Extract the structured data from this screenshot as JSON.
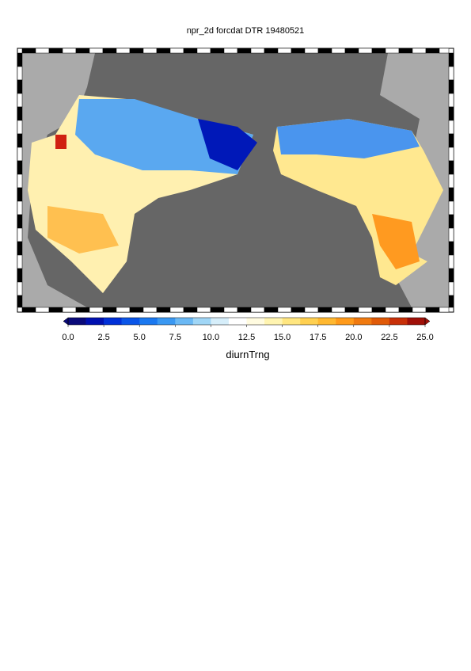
{
  "chart_data": {
    "type": "map",
    "title": "npr_2d forcdat DTR 19480521",
    "colorbar": {
      "label": "diurnTrng",
      "lim": [
        0,
        25
      ],
      "ticks": [
        {
          "value": 0,
          "label": "0.0"
        },
        2.5,
        {
          "value": 5,
          "label": "5.0"
        },
        7.5,
        {
          "value": 10,
          "label": "10.0"
        },
        12.5,
        {
          "value": 15,
          "label": "15.0"
        },
        17.5,
        {
          "value": 20,
          "label": "20.0"
        },
        22.5,
        {
          "value": 25,
          "label": "25.0"
        }
      ],
      "colors": [
        "#0a0a7a",
        "#0010b0",
        "#0030d8",
        "#0a55e8",
        "#1a78f0",
        "#3a98f2",
        "#6ab8f4",
        "#a0d6f6",
        "#d6eefa",
        "#ffffff",
        "#fffbe0",
        "#fff4b0",
        "#ffe680",
        "#ffd050",
        "#ffb830",
        "#ff9a1a",
        "#f07a10",
        "#e05a08",
        "#c83008",
        "#a01008"
      ]
    }
  }
}
